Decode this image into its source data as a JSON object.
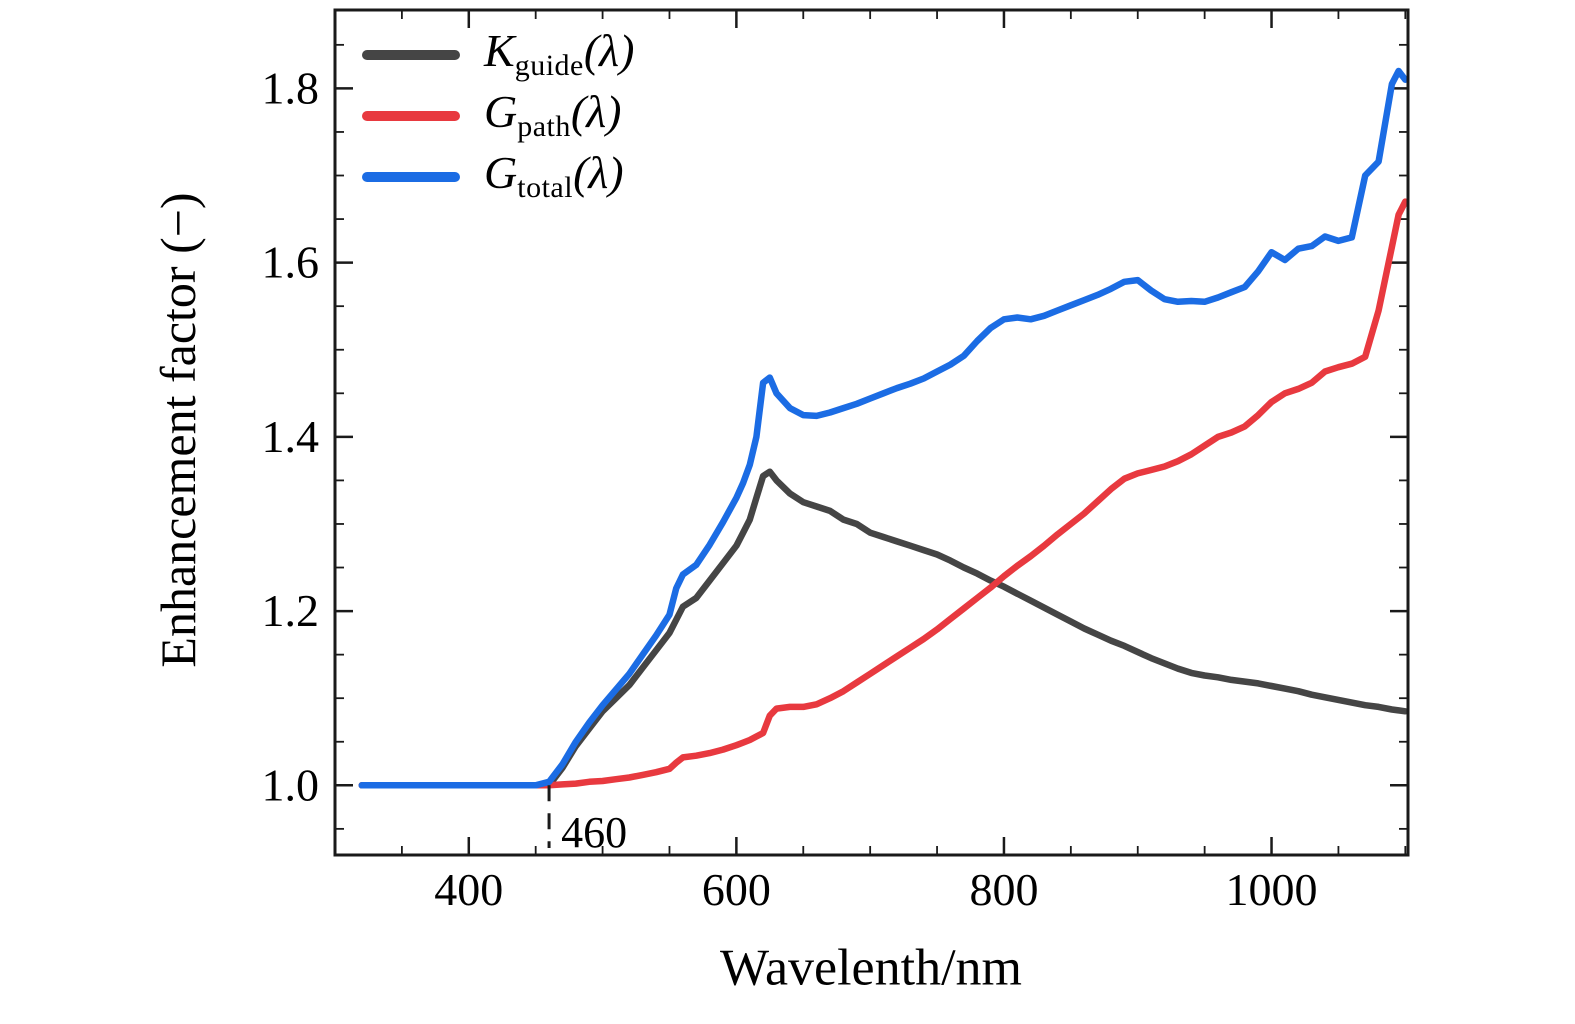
{
  "chart_data": {
    "type": "line",
    "title": "",
    "xlabel": "Wavelenth/nm",
    "ylabel": "Enhancement factor (−)",
    "xlim": [
      300,
      1102
    ],
    "ylim": [
      0.92,
      1.89
    ],
    "xticks": [
      400,
      600,
      800,
      1000
    ],
    "yticks": [
      1.0,
      1.2,
      1.4,
      1.6,
      1.8
    ],
    "x_minor_step": 50,
    "y_minor_step": 0.05,
    "legend_position": "upper left",
    "grid": false,
    "annotation": {
      "label": "460",
      "x": 460,
      "y_top": 1.0,
      "y_bottom": 0.928
    },
    "x": [
      320,
      340,
      360,
      380,
      400,
      420,
      440,
      450,
      460,
      470,
      480,
      490,
      500,
      510,
      520,
      530,
      540,
      550,
      555,
      560,
      570,
      580,
      590,
      600,
      605,
      610,
      615,
      620,
      625,
      630,
      640,
      650,
      660,
      670,
      680,
      690,
      700,
      710,
      720,
      730,
      740,
      750,
      760,
      770,
      780,
      790,
      800,
      810,
      820,
      830,
      840,
      850,
      860,
      870,
      880,
      890,
      900,
      910,
      920,
      930,
      940,
      950,
      960,
      970,
      980,
      990,
      1000,
      1010,
      1020,
      1030,
      1040,
      1050,
      1060,
      1070,
      1080,
      1090,
      1095,
      1100
    ],
    "series": [
      {
        "name": "K_guide(λ)",
        "symbol": "K",
        "subscript": "guide",
        "suffix": "(λ)",
        "color": "#454545",
        "values": [
          1.0,
          1.0,
          1.0,
          1.0,
          1.0,
          1.0,
          1.0,
          1.0,
          1.0,
          1.02,
          1.045,
          1.065,
          1.085,
          1.1,
          1.115,
          1.135,
          1.155,
          1.175,
          1.19,
          1.205,
          1.215,
          1.235,
          1.255,
          1.275,
          1.29,
          1.305,
          1.33,
          1.355,
          1.36,
          1.35,
          1.335,
          1.325,
          1.32,
          1.315,
          1.305,
          1.3,
          1.29,
          1.285,
          1.28,
          1.275,
          1.27,
          1.265,
          1.258,
          1.25,
          1.243,
          1.235,
          1.228,
          1.22,
          1.212,
          1.204,
          1.196,
          1.188,
          1.18,
          1.173,
          1.166,
          1.16,
          1.153,
          1.146,
          1.14,
          1.134,
          1.129,
          1.126,
          1.124,
          1.121,
          1.119,
          1.117,
          1.114,
          1.111,
          1.108,
          1.104,
          1.101,
          1.098,
          1.095,
          1.092,
          1.09,
          1.087,
          1.086,
          1.085
        ]
      },
      {
        "name": "G_path(λ)",
        "symbol": "G",
        "subscript": "path",
        "suffix": "(λ)",
        "color": "#e8393f",
        "values": [
          1.0,
          1.0,
          1.0,
          1.0,
          1.0,
          1.0,
          1.0,
          1.0,
          1.0,
          1.001,
          1.002,
          1.004,
          1.005,
          1.007,
          1.009,
          1.012,
          1.015,
          1.019,
          1.026,
          1.032,
          1.034,
          1.037,
          1.041,
          1.046,
          1.049,
          1.052,
          1.056,
          1.06,
          1.08,
          1.088,
          1.09,
          1.09,
          1.093,
          1.1,
          1.108,
          1.118,
          1.128,
          1.138,
          1.148,
          1.158,
          1.168,
          1.179,
          1.191,
          1.203,
          1.215,
          1.227,
          1.24,
          1.252,
          1.263,
          1.275,
          1.288,
          1.3,
          1.312,
          1.326,
          1.34,
          1.352,
          1.358,
          1.362,
          1.366,
          1.372,
          1.38,
          1.39,
          1.4,
          1.405,
          1.412,
          1.425,
          1.44,
          1.45,
          1.455,
          1.462,
          1.475,
          1.48,
          1.484,
          1.492,
          1.545,
          1.618,
          1.655,
          1.67
        ]
      },
      {
        "name": "G_total(λ)",
        "symbol": "G",
        "subscript": "total",
        "suffix": "(λ)",
        "color": "#1b6ce4",
        "values": [
          1.0,
          1.0,
          1.0,
          1.0,
          1.0,
          1.0,
          1.0,
          1.0,
          1.004,
          1.024,
          1.05,
          1.072,
          1.092,
          1.11,
          1.128,
          1.15,
          1.172,
          1.196,
          1.226,
          1.242,
          1.253,
          1.276,
          1.302,
          1.33,
          1.347,
          1.368,
          1.4,
          1.462,
          1.468,
          1.45,
          1.433,
          1.425,
          1.424,
          1.428,
          1.433,
          1.438,
          1.444,
          1.45,
          1.456,
          1.461,
          1.467,
          1.475,
          1.483,
          1.493,
          1.51,
          1.525,
          1.535,
          1.537,
          1.535,
          1.539,
          1.545,
          1.551,
          1.557,
          1.563,
          1.57,
          1.578,
          1.58,
          1.568,
          1.558,
          1.555,
          1.556,
          1.555,
          1.56,
          1.566,
          1.572,
          1.59,
          1.612,
          1.603,
          1.616,
          1.619,
          1.63,
          1.625,
          1.629,
          1.7,
          1.716,
          1.805,
          1.82,
          1.81
        ]
      }
    ]
  }
}
